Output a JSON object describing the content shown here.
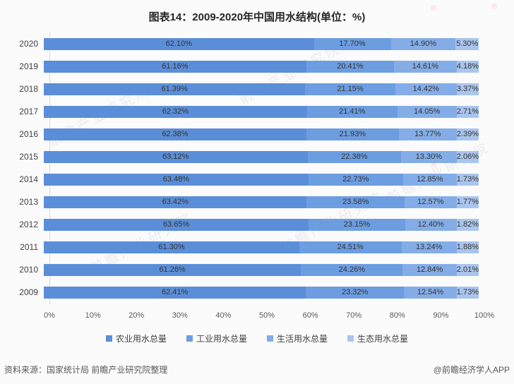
{
  "title": "图表14：2009-2020年中国用水结构(单位：%)",
  "watermark": {
    "text": "前瞻产业研究院",
    "corner_mark": "®"
  },
  "chart_data": {
    "type": "bar",
    "orientation": "horizontal-stacked",
    "title": "图表14：2009-2020年中国用水结构(单位：%)",
    "unit": "%",
    "categories": [
      "2020",
      "2019",
      "2018",
      "2017",
      "2016",
      "2015",
      "2014",
      "2013",
      "2012",
      "2011",
      "2010",
      "2009"
    ],
    "series": [
      {
        "name": "农业用水总量",
        "color": "#5b8ed8",
        "values": [
          62.1,
          61.16,
          61.39,
          62.32,
          62.38,
          63.12,
          63.48,
          63.42,
          63.65,
          61.3,
          61.26,
          62.41
        ]
      },
      {
        "name": "工业用水总量",
        "color": "#6c9de1",
        "values": [
          17.7,
          20.41,
          21.15,
          21.41,
          21.93,
          22.38,
          22.73,
          23.58,
          23.15,
          24.51,
          24.26,
          23.32
        ]
      },
      {
        "name": "生活用水总量",
        "color": "#84ade7",
        "values": [
          14.9,
          14.61,
          14.42,
          14.05,
          13.77,
          13.3,
          12.85,
          12.57,
          12.4,
          13.24,
          12.84,
          12.54
        ]
      },
      {
        "name": "生态用水总量",
        "color": "#a9c5ee",
        "values": [
          5.3,
          4.18,
          3.37,
          2.71,
          2.39,
          2.06,
          1.73,
          1.77,
          1.82,
          1.88,
          2.01,
          1.73
        ]
      }
    ],
    "x_ticks": [
      "0%",
      "10%",
      "20%",
      "30%",
      "40%",
      "50%",
      "60%",
      "70%",
      "80%",
      "90%",
      "100%"
    ],
    "xlim": [
      0,
      100
    ],
    "grid": false,
    "legend_position": "bottom",
    "value_label_decimals": 2
  },
  "footer": {
    "source": "资料来源：国家统计局 前瞻产业研究院整理",
    "credit": "@前瞻经济学人APP"
  }
}
